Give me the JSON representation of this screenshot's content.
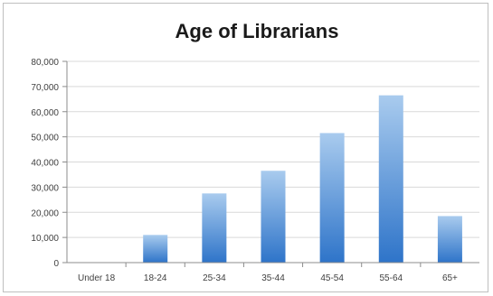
{
  "chart_data": {
    "type": "bar",
    "title": "Age of Librarians",
    "xlabel": "",
    "ylabel": "",
    "categories": [
      "Under 18",
      "18-24",
      "25-34",
      "35-44",
      "45-54",
      "55-64",
      "65+"
    ],
    "values": [
      0,
      11000,
      27500,
      36500,
      51500,
      66500,
      18500
    ],
    "ylim": [
      0,
      80000
    ],
    "yticks": [
      "0",
      "10,000",
      "20,000",
      "30,000",
      "40,000",
      "50,000",
      "60,000",
      "70,000",
      "80,000"
    ],
    "grid": true,
    "legend": "none",
    "colors": {
      "bar_top": "#a9cbee",
      "bar_bottom": "#2e74c9",
      "grid": "#d9d9d9",
      "axis": "#8c8c8c",
      "text": "#404040",
      "title": "#1a1a1a",
      "border": "#bfbfbf"
    }
  }
}
